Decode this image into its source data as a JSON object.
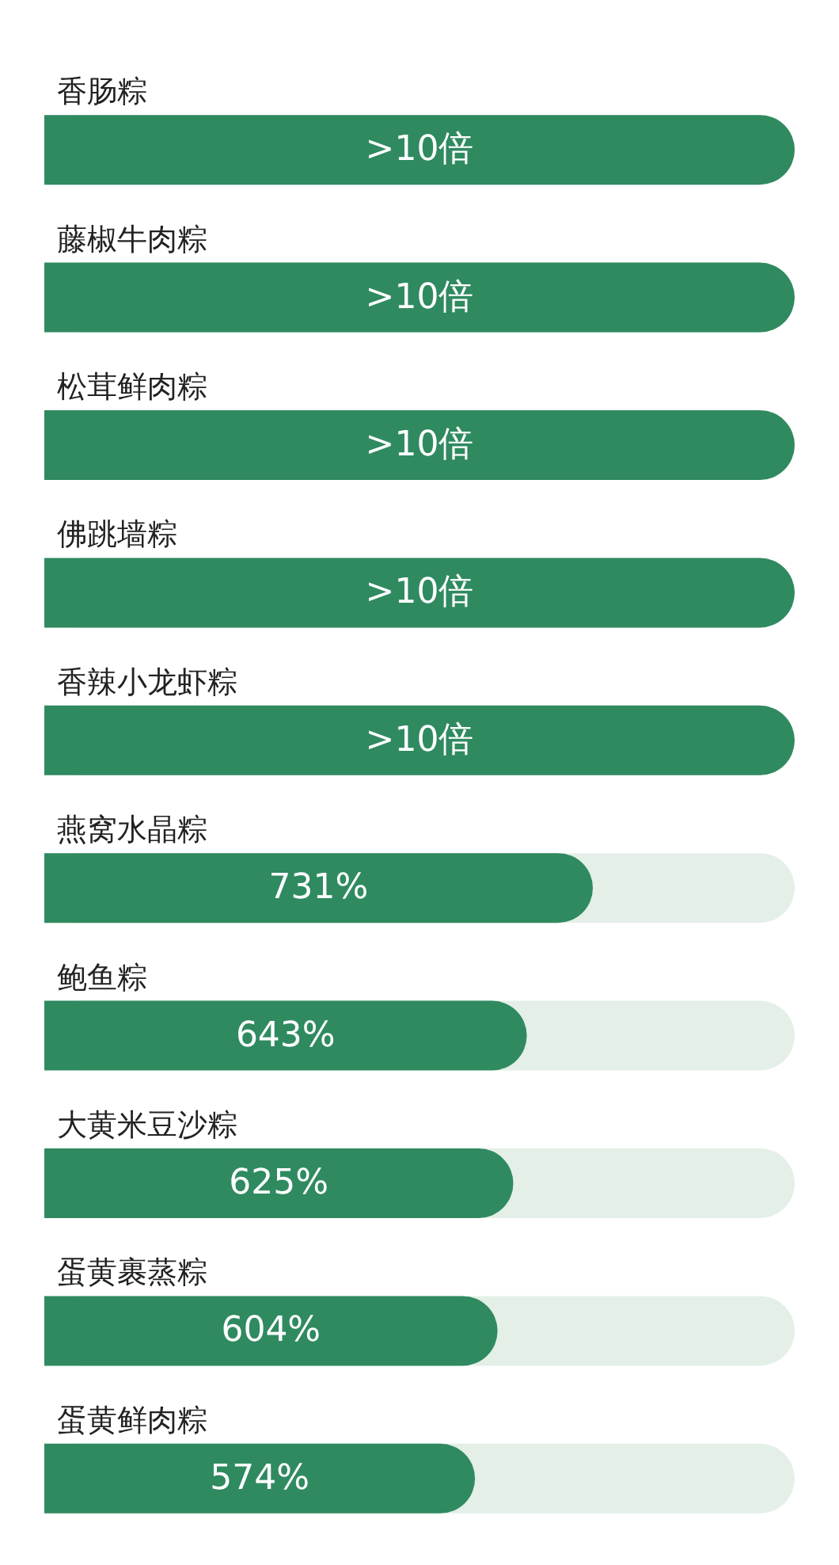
{
  "chart_data": {
    "type": "bar",
    "orientation": "horizontal",
    "categories": [
      "香肠粽",
      "藤椒牛肉粽",
      "松茸鲜肉粽",
      "佛跳墙粽",
      "香辣小龙虾粽",
      "燕窝水晶粽",
      "鲍鱼粽",
      "大黄米豆沙粽",
      "蛋黄裹蒸粽",
      "蛋黄鲜肉粽"
    ],
    "values": [
      1000,
      1000,
      1000,
      1000,
      1000,
      731,
      643,
      625,
      604,
      574
    ],
    "value_labels": [
      ">10倍",
      ">10倍",
      ">10倍",
      ">10倍",
      ">10倍",
      "731%",
      "643%",
      "625%",
      "604%",
      "574%"
    ],
    "color": "#2f8a60"
  }
}
